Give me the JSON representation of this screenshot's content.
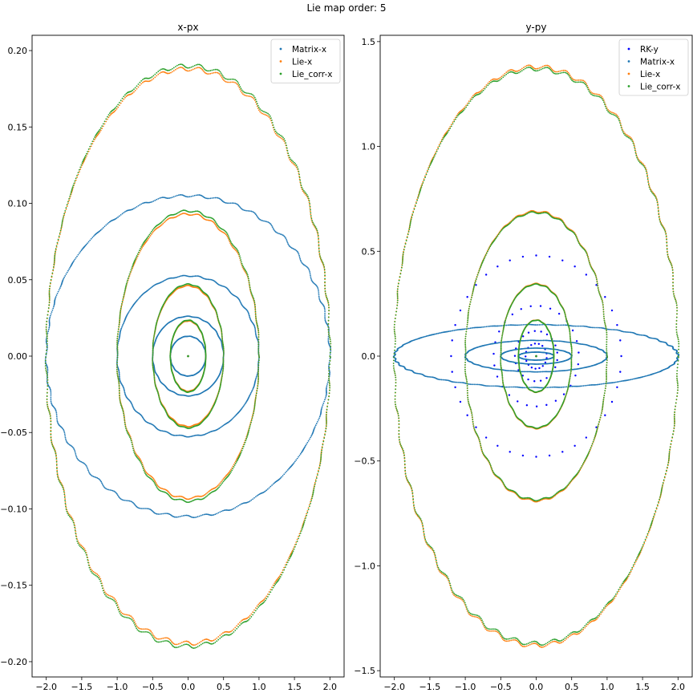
{
  "suptitle": "Lie map order: 5",
  "colors": {
    "rk": "#0000ff",
    "matrix": "#1f77b4",
    "lie": "#ff7f0e",
    "lie_corr": "#2ca02c"
  },
  "chart_data": [
    {
      "type": "scatter",
      "title": "x-px",
      "xlabel": "",
      "ylabel": "",
      "xlim": [
        -2.2,
        2.2
      ],
      "ylim": [
        -0.21,
        0.21
      ],
      "xticks": [
        -2.0,
        -1.5,
        -1.0,
        -0.5,
        0.0,
        0.5,
        1.0,
        1.5,
        2.0
      ],
      "xtick_labels": [
        "−2.0",
        "−1.5",
        "−1.0",
        "−0.5",
        "0.0",
        "0.5",
        "1.0",
        "1.5",
        "2.0"
      ],
      "yticks": [
        -0.2,
        -0.15,
        -0.1,
        -0.05,
        0.0,
        0.05,
        0.1,
        0.15,
        0.2
      ],
      "ytick_labels": [
        "−0.20",
        "−0.15",
        "−0.10",
        "−0.05",
        "0.00",
        "0.05",
        "0.10",
        "0.15",
        "0.20"
      ],
      "legend": "top-right",
      "series": [
        {
          "name": "Matrix-x",
          "color": "#1f77b4",
          "shape": "ellipse",
          "orbits": [
            {
              "a": 2.0,
              "b": 0.105
            },
            {
              "a": 1.0,
              "b": 0.0525
            },
            {
              "a": 0.5,
              "b": 0.026
            },
            {
              "a": 0.25,
              "b": 0.013
            }
          ]
        },
        {
          "name": "Lie-x",
          "color": "#ff7f0e",
          "shape": "ellipse",
          "orbits": [
            {
              "a": 2.0,
              "b": 0.188
            },
            {
              "a": 1.0,
              "b": 0.093
            },
            {
              "a": 0.5,
              "b": 0.046
            },
            {
              "a": 0.25,
              "b": 0.023
            }
          ]
        },
        {
          "name": "Lie_corr-x",
          "color": "#2ca02c",
          "shape": "ellipse",
          "orbits": [
            {
              "a": 2.0,
              "b": 0.19
            },
            {
              "a": 1.0,
              "b": 0.095
            },
            {
              "a": 0.5,
              "b": 0.047
            },
            {
              "a": 0.25,
              "b": 0.0235
            }
          ]
        }
      ]
    },
    {
      "type": "scatter",
      "title": "y-py",
      "xlabel": "",
      "ylabel": "",
      "xlim": [
        -2.2,
        2.2
      ],
      "ylim": [
        -1.53,
        1.53
      ],
      "xticks": [
        -2.0,
        -1.5,
        -1.0,
        -0.5,
        0.0,
        0.5,
        1.0,
        1.5,
        2.0
      ],
      "xtick_labels": [
        "−2.0",
        "−1.5",
        "−1.0",
        "−0.5",
        "0.0",
        "0.5",
        "1.0",
        "1.5",
        "2.0"
      ],
      "yticks": [
        -1.5,
        -1.0,
        -0.5,
        0.0,
        0.5,
        1.0,
        1.5
      ],
      "ytick_labels": [
        "−1.5",
        "−1.0",
        "−0.5",
        "0.0",
        "0.5",
        "1.0",
        "1.5"
      ],
      "legend": "top-right",
      "series": [
        {
          "name": "RK-y",
          "color": "#0000ff",
          "shape": "ellipse-sparse",
          "orbits": [
            {
              "a": 1.2,
              "b": 0.48
            },
            {
              "a": 0.6,
              "b": 0.24
            },
            {
              "a": 0.3,
              "b": 0.12
            },
            {
              "a": 0.15,
              "b": 0.06
            }
          ]
        },
        {
          "name": "Matrix-x",
          "color": "#1f77b4",
          "shape": "ellipse",
          "orbits": [
            {
              "a": 2.0,
              "b": 0.15
            },
            {
              "a": 1.0,
              "b": 0.075
            },
            {
              "a": 0.5,
              "b": 0.038
            },
            {
              "a": 0.25,
              "b": 0.019
            }
          ]
        },
        {
          "name": "Lie-x",
          "color": "#ff7f0e",
          "shape": "ellipse",
          "orbits": [
            {
              "a": 2.0,
              "b": 1.38
            },
            {
              "a": 1.0,
              "b": 0.69
            },
            {
              "a": 0.5,
              "b": 0.345
            },
            {
              "a": 0.25,
              "b": 0.172
            }
          ]
        },
        {
          "name": "Lie_corr-x",
          "color": "#2ca02c",
          "shape": "ellipse",
          "orbits": [
            {
              "a": 2.0,
              "b": 1.37
            },
            {
              "a": 1.0,
              "b": 0.685
            },
            {
              "a": 0.5,
              "b": 0.342
            },
            {
              "a": 0.25,
              "b": 0.171
            }
          ]
        }
      ]
    }
  ]
}
